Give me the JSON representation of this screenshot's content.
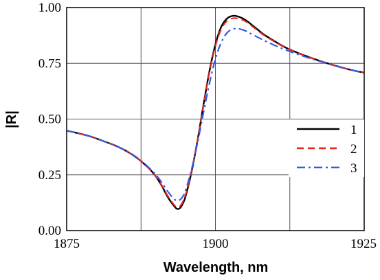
{
  "chart_data": {
    "type": "line",
    "title": "",
    "xlabel": "Wavelength,  nm",
    "ylabel": "|R|",
    "xlim": [
      1875,
      1925
    ],
    "ylim": [
      0.0,
      1.0
    ],
    "x_ticks": [
      1875,
      1900,
      1925
    ],
    "x_tick_labels": [
      "1875",
      "1900",
      "1925"
    ],
    "x_grid_lines": [
      1887.5,
      1900,
      1912.5
    ],
    "y_ticks": [
      0.0,
      0.25,
      0.5,
      0.75,
      1.0
    ],
    "y_tick_labels": [
      "0.00",
      "0.25",
      "0.50",
      "0.75",
      "1.00"
    ],
    "grid": true,
    "legend_position": "right",
    "series": [
      {
        "name": "1",
        "color": "#000000",
        "dash": "solid",
        "points": [
          [
            1875,
            0.448
          ],
          [
            1877,
            0.436
          ],
          [
            1879,
            0.422
          ],
          [
            1881,
            0.403
          ],
          [
            1883,
            0.383
          ],
          [
            1885,
            0.357
          ],
          [
            1887,
            0.322
          ],
          [
            1889,
            0.274
          ],
          [
            1890,
            0.242
          ],
          [
            1891,
            0.2
          ],
          [
            1892,
            0.15
          ],
          [
            1893,
            0.112
          ],
          [
            1893.5,
            0.098
          ],
          [
            1894,
            0.1
          ],
          [
            1894.5,
            0.12
          ],
          [
            1895,
            0.155
          ],
          [
            1896,
            0.265
          ],
          [
            1897,
            0.405
          ],
          [
            1898,
            0.565
          ],
          [
            1899,
            0.715
          ],
          [
            1900,
            0.835
          ],
          [
            1901,
            0.915
          ],
          [
            1902,
            0.952
          ],
          [
            1903,
            0.963
          ],
          [
            1904,
            0.958
          ],
          [
            1905,
            0.945
          ],
          [
            1906,
            0.925
          ],
          [
            1908,
            0.882
          ],
          [
            1910,
            0.848
          ],
          [
            1912,
            0.818
          ],
          [
            1915,
            0.785
          ],
          [
            1918,
            0.757
          ],
          [
            1921,
            0.733
          ],
          [
            1923,
            0.719
          ],
          [
            1925,
            0.708
          ]
        ]
      },
      {
        "name": "2",
        "color": "#e8231c",
        "dash": "dashed",
        "points": [
          [
            1875,
            0.448
          ],
          [
            1877,
            0.436
          ],
          [
            1879,
            0.422
          ],
          [
            1881,
            0.403
          ],
          [
            1883,
            0.383
          ],
          [
            1885,
            0.357
          ],
          [
            1887,
            0.322
          ],
          [
            1889,
            0.274
          ],
          [
            1890,
            0.243
          ],
          [
            1891,
            0.202
          ],
          [
            1892,
            0.155
          ],
          [
            1893,
            0.117
          ],
          [
            1893.5,
            0.105
          ],
          [
            1894,
            0.108
          ],
          [
            1894.5,
            0.128
          ],
          [
            1895,
            0.162
          ],
          [
            1896,
            0.268
          ],
          [
            1897,
            0.405
          ],
          [
            1898,
            0.562
          ],
          [
            1899,
            0.71
          ],
          [
            1900,
            0.828
          ],
          [
            1901,
            0.905
          ],
          [
            1902,
            0.942
          ],
          [
            1903,
            0.952
          ],
          [
            1904,
            0.95
          ],
          [
            1905,
            0.939
          ],
          [
            1906,
            0.92
          ],
          [
            1908,
            0.879
          ],
          [
            1910,
            0.846
          ],
          [
            1912,
            0.817
          ],
          [
            1915,
            0.784
          ],
          [
            1918,
            0.757
          ],
          [
            1921,
            0.733
          ],
          [
            1923,
            0.719
          ],
          [
            1925,
            0.708
          ]
        ]
      },
      {
        "name": "3",
        "color": "#2f5be8",
        "dash": "dashdot",
        "points": [
          [
            1875,
            0.448
          ],
          [
            1877,
            0.436
          ],
          [
            1879,
            0.422
          ],
          [
            1881,
            0.403
          ],
          [
            1883,
            0.383
          ],
          [
            1885,
            0.358
          ],
          [
            1887,
            0.324
          ],
          [
            1889,
            0.278
          ],
          [
            1890,
            0.25
          ],
          [
            1891,
            0.215
          ],
          [
            1892,
            0.175
          ],
          [
            1893,
            0.143
          ],
          [
            1893.5,
            0.135
          ],
          [
            1894,
            0.137
          ],
          [
            1894.5,
            0.152
          ],
          [
            1895,
            0.182
          ],
          [
            1896,
            0.275
          ],
          [
            1897,
            0.395
          ],
          [
            1898,
            0.53
          ],
          [
            1899,
            0.66
          ],
          [
            1900,
            0.77
          ],
          [
            1901,
            0.845
          ],
          [
            1902,
            0.888
          ],
          [
            1903,
            0.904
          ],
          [
            1904,
            0.904
          ],
          [
            1905,
            0.896
          ],
          [
            1906,
            0.882
          ],
          [
            1908,
            0.855
          ],
          [
            1910,
            0.83
          ],
          [
            1912,
            0.808
          ],
          [
            1915,
            0.78
          ],
          [
            1918,
            0.755
          ],
          [
            1921,
            0.732
          ],
          [
            1923,
            0.719
          ],
          [
            1925,
            0.708
          ]
        ]
      }
    ]
  }
}
